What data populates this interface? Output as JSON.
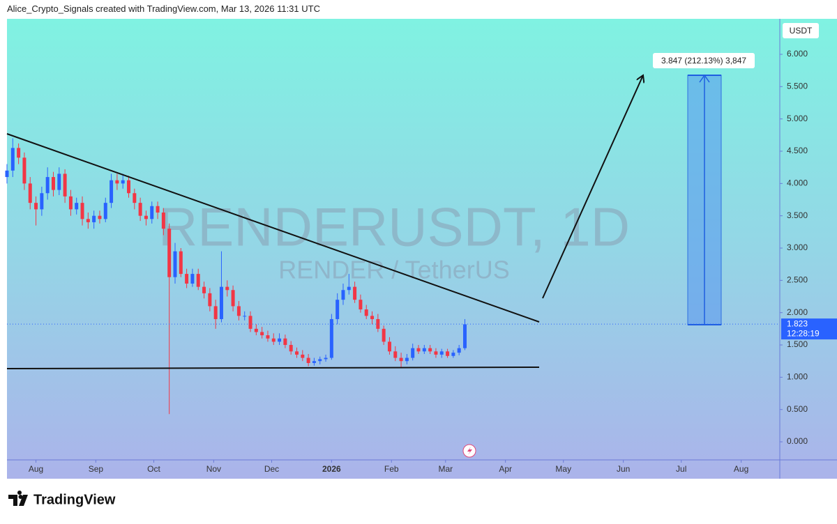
{
  "chart_data": {
    "type": "candlestick",
    "header": "Alice_Crypto_Signals created with TradingView.com, Mar 13, 2026 11:31 UTC",
    "title": "RENDERUSDT, 1D",
    "subtitle": "RENDER / TetherUS",
    "currency": "USDT",
    "footer": "TradingView",
    "measure_label": "3.847 (212.13%) 3,847",
    "last_price": 1.823,
    "countdown": "12:28:19",
    "up_color": "#2962ff",
    "down_color": "#f23645",
    "xlim": [
      0,
      400
    ],
    "xticks": [
      {
        "value": 15,
        "label": "Aug"
      },
      {
        "value": 46,
        "label": "Sep"
      },
      {
        "value": 76,
        "label": "Oct"
      },
      {
        "value": 107,
        "label": "Nov"
      },
      {
        "value": 137,
        "label": "Dec"
      },
      {
        "value": 168,
        "label": "2026"
      },
      {
        "value": 199,
        "label": "Feb"
      },
      {
        "value": 227,
        "label": "Mar"
      },
      {
        "value": 258,
        "label": "Apr"
      },
      {
        "value": 288,
        "label": "May"
      },
      {
        "value": 319,
        "label": "Jun"
      },
      {
        "value": 349,
        "label": "Jul"
      },
      {
        "value": 380,
        "label": "Aug"
      }
    ],
    "ylim": [
      -0.28,
      6.55
    ],
    "yticks": [
      {
        "value": 0,
        "label": "0.000"
      },
      {
        "value": 0.5,
        "label": "0.500"
      },
      {
        "value": 1,
        "label": "1.000"
      },
      {
        "value": 1.5,
        "label": "1.500"
      },
      {
        "value": 2,
        "label": "2.000"
      },
      {
        "value": 2.5,
        "label": "2.500"
      },
      {
        "value": 3,
        "label": "3.000"
      },
      {
        "value": 3.5,
        "label": "3.500"
      },
      {
        "value": 4,
        "label": "4.000"
      },
      {
        "value": 4.5,
        "label": "4.500"
      },
      {
        "value": 5,
        "label": "5.000"
      },
      {
        "value": 5.5,
        "label": "5.500"
      },
      {
        "value": 6,
        "label": "6.000"
      }
    ],
    "candles": {
      "x": [
        0,
        3,
        6,
        9,
        12,
        15,
        18,
        21,
        24,
        27,
        30,
        33,
        36,
        39,
        42,
        45,
        48,
        51,
        54,
        57,
        60,
        63,
        66,
        69,
        72,
        75,
        78,
        81,
        84,
        87,
        90,
        93,
        96,
        99,
        102,
        105,
        108,
        111,
        114,
        117,
        120,
        123,
        126,
        129,
        132,
        135,
        138,
        141,
        144,
        147,
        150,
        153,
        156,
        159,
        162,
        165,
        168,
        171,
        174,
        177,
        180,
        183,
        186,
        189,
        192,
        195,
        198,
        201,
        204,
        207,
        210,
        213,
        216,
        219,
        222,
        225,
        228,
        231,
        234,
        237
      ],
      "open": [
        4.1,
        4.2,
        4.55,
        4.4,
        4.0,
        3.7,
        3.6,
        3.85,
        4.1,
        3.9,
        4.15,
        3.8,
        3.6,
        3.7,
        3.45,
        3.4,
        3.5,
        3.45,
        3.7,
        4.05,
        4.0,
        4.05,
        3.85,
        3.7,
        3.5,
        3.45,
        3.65,
        3.55,
        3.3,
        2.55,
        2.95,
        2.6,
        2.45,
        2.6,
        2.4,
        2.3,
        2.1,
        1.9,
        2.4,
        2.35,
        2.1,
        1.95,
        1.95,
        1.75,
        1.7,
        1.65,
        1.6,
        1.55,
        1.6,
        1.5,
        1.4,
        1.35,
        1.3,
        1.22,
        1.25,
        1.28,
        1.3,
        1.9,
        2.2,
        2.35,
        2.4,
        2.2,
        2.05,
        1.95,
        1.9,
        1.75,
        1.55,
        1.4,
        1.3,
        1.25,
        1.3,
        1.45,
        1.4,
        1.45,
        1.4,
        1.35,
        1.4,
        1.33,
        1.38,
        1.45
      ],
      "high": [
        4.3,
        4.7,
        4.62,
        4.48,
        4.1,
        3.8,
        3.95,
        4.25,
        4.18,
        4.25,
        4.22,
        3.9,
        3.78,
        3.8,
        3.55,
        3.58,
        3.58,
        3.78,
        4.15,
        4.15,
        4.15,
        4.12,
        3.92,
        3.78,
        3.58,
        3.72,
        3.72,
        3.62,
        3.38,
        3.08,
        3.0,
        2.68,
        2.68,
        2.68,
        2.48,
        2.38,
        2.2,
        2.95,
        2.5,
        2.42,
        2.18,
        2.02,
        2.02,
        1.82,
        1.78,
        1.72,
        1.68,
        1.68,
        1.66,
        1.56,
        1.46,
        1.42,
        1.36,
        1.3,
        1.32,
        1.35,
        1.98,
        2.3,
        2.45,
        2.6,
        2.48,
        2.28,
        2.12,
        2.02,
        1.98,
        1.8,
        1.62,
        1.48,
        1.38,
        1.36,
        1.52,
        1.5,
        1.5,
        1.5,
        1.45,
        1.44,
        1.44,
        1.42,
        1.5,
        1.9
      ],
      "low": [
        4.0,
        4.1,
        4.3,
        3.9,
        3.6,
        3.35,
        3.5,
        3.75,
        3.8,
        3.82,
        3.7,
        3.5,
        3.52,
        3.35,
        3.3,
        3.3,
        3.38,
        3.4,
        3.62,
        3.9,
        3.92,
        3.78,
        3.6,
        3.42,
        3.35,
        3.38,
        3.45,
        3.2,
        0.43,
        2.45,
        2.55,
        2.38,
        2.4,
        2.35,
        2.22,
        2.02,
        1.75,
        1.85,
        2.25,
        2.02,
        1.88,
        1.88,
        1.7,
        1.65,
        1.6,
        1.55,
        1.5,
        1.5,
        1.45,
        1.35,
        1.3,
        1.25,
        1.17,
        1.18,
        1.2,
        1.24,
        1.27,
        1.82,
        2.12,
        2.28,
        2.15,
        2.0,
        1.9,
        1.82,
        1.7,
        1.5,
        1.35,
        1.25,
        1.15,
        1.2,
        1.26,
        1.36,
        1.36,
        1.36,
        1.3,
        1.3,
        1.3,
        1.3,
        1.34,
        1.42
      ],
      "close": [
        4.2,
        4.55,
        4.4,
        4.0,
        3.7,
        3.6,
        3.85,
        4.1,
        3.9,
        4.15,
        3.8,
        3.6,
        3.7,
        3.45,
        3.4,
        3.5,
        3.45,
        3.7,
        4.05,
        4.0,
        4.05,
        3.85,
        3.7,
        3.5,
        3.45,
        3.65,
        3.55,
        3.3,
        2.55,
        2.95,
        2.6,
        2.45,
        2.6,
        2.4,
        2.3,
        2.1,
        1.9,
        2.4,
        2.35,
        2.1,
        1.95,
        1.95,
        1.75,
        1.7,
        1.65,
        1.6,
        1.55,
        1.6,
        1.5,
        1.4,
        1.35,
        1.3,
        1.22,
        1.25,
        1.28,
        1.3,
        1.9,
        2.2,
        2.35,
        2.4,
        2.2,
        2.05,
        1.95,
        1.9,
        1.75,
        1.55,
        1.4,
        1.3,
        1.25,
        1.3,
        1.45,
        1.4,
        1.45,
        1.4,
        1.35,
        1.4,
        1.33,
        1.38,
        1.45,
        1.82
      ]
    }
  }
}
